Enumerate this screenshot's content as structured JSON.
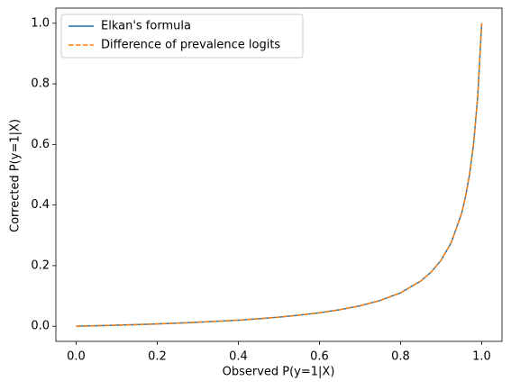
{
  "chart_data": {
    "type": "line",
    "xlabel": "Observed P(y=1|X)",
    "ylabel": "Corrected P(y=1|X)",
    "x": [
      0,
      0.05,
      0.1,
      0.15,
      0.2,
      0.25,
      0.3,
      0.35,
      0.4,
      0.45,
      0.5,
      0.55,
      0.6,
      0.65,
      0.7,
      0.75,
      0.8,
      0.85,
      0.875,
      0.9,
      0.925,
      0.95,
      0.96,
      0.97,
      0.98,
      0.99,
      1.0
    ],
    "series": [
      {
        "name": "Elkan's formula",
        "color": "#1f77b4",
        "dash": false,
        "values": [
          0,
          0.00163,
          0.00343,
          0.00544,
          0.00769,
          0.01023,
          0.01311,
          0.01642,
          0.02,
          0.02474,
          0.03007,
          0.03651,
          0.0444,
          0.05444,
          0.06745,
          0.0851,
          0.1103,
          0.1494,
          0.1783,
          0.218,
          0.2766,
          0.3707,
          0.4266,
          0.5006,
          0.603,
          0.7542,
          1.0
        ]
      },
      {
        "name": "Difference of prevalence logits",
        "color": "#ff7f0e",
        "dash": true,
        "values": [
          0,
          0.00163,
          0.00343,
          0.00544,
          0.00769,
          0.01023,
          0.01311,
          0.01642,
          0.02,
          0.02474,
          0.03007,
          0.03651,
          0.0444,
          0.05444,
          0.06745,
          0.0851,
          0.1103,
          0.1494,
          0.1783,
          0.218,
          0.2766,
          0.3707,
          0.4266,
          0.5006,
          0.603,
          0.7542,
          1.0
        ]
      }
    ],
    "xlim": [
      -0.05,
      1.05
    ],
    "ylim": [
      -0.05,
      1.05
    ],
    "xticks": [
      {
        "value": 0,
        "label": "0.0"
      },
      0.2,
      0.4,
      0.6,
      0.8,
      {
        "value": 1,
        "label": "1.0"
      }
    ],
    "yticks": [
      {
        "value": 0,
        "label": "0.0"
      },
      0.2,
      0.4,
      0.6,
      0.8,
      {
        "value": 1,
        "label": "1.0"
      }
    ],
    "legend": "upper left",
    "grid": false
  }
}
